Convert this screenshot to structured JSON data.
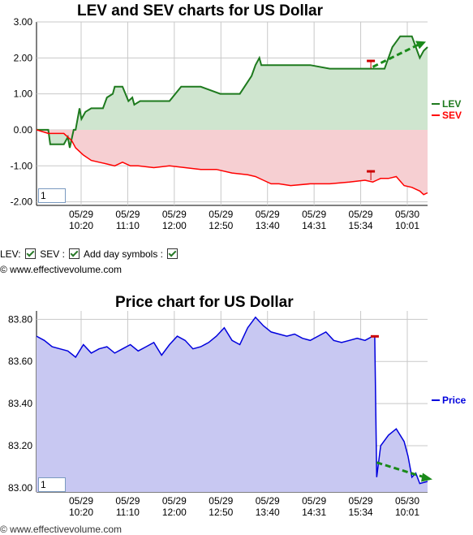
{
  "controls": {
    "lev_label": "LEV:",
    "sev_label": "SEV :",
    "day_symbols_label": "Add day symbols :"
  },
  "copyright": "© www.effectivevolume.com",
  "footer_partial": "© www.effectivevolume.com",
  "colors": {
    "lev": "#1e7a1e",
    "lev_fill": "#cfe5cf",
    "sev": "#ff0000",
    "sev_fill": "#f6cfd2",
    "price": "#0000dd",
    "price_fill": "#c8c8f2",
    "trend_arrow": "#1a8a1a"
  },
  "chart_data": [
    {
      "type": "line",
      "title": "LEV and SEV charts for US Dollar",
      "zoom_value": "1",
      "ylim": [
        -2.1,
        3.0
      ],
      "yticks": [
        "3.00",
        "2.00",
        "1.00",
        "0.00",
        "-1.00",
        "-2.00"
      ],
      "ytick_values": [
        3,
        2,
        1,
        0,
        -1,
        -2
      ],
      "xticks": [
        {
          "date": "05/29",
          "time": "10:20"
        },
        {
          "date": "05/29",
          "time": "11:10"
        },
        {
          "date": "05/29",
          "time": "12:00"
        },
        {
          "date": "05/29",
          "time": "12:50"
        },
        {
          "date": "05/29",
          "time": "13:40"
        },
        {
          "date": "05/29",
          "time": "14:31"
        },
        {
          "date": "05/29",
          "time": "15:34"
        },
        {
          "date": "05/30",
          "time": "10:01"
        }
      ],
      "grid": true,
      "legend": "right",
      "series": [
        {
          "name": "LEV",
          "x": [
            0,
            0.03,
            0.035,
            0.05,
            0.07,
            0.08,
            0.085,
            0.095,
            0.1,
            0.11,
            0.115,
            0.125,
            0.14,
            0.16,
            0.17,
            0.18,
            0.195,
            0.2,
            0.22,
            0.235,
            0.245,
            0.25,
            0.265,
            0.275,
            0.285,
            0.3,
            0.34,
            0.37,
            0.38,
            0.42,
            0.47,
            0.5,
            0.52,
            0.55,
            0.56,
            0.57,
            0.575,
            0.59,
            0.61,
            0.62,
            0.63,
            0.65,
            0.7,
            0.75,
            0.8,
            0.85,
            0.87,
            0.88,
            0.89,
            0.9,
            0.91,
            0.93,
            0.95,
            0.96,
            0.97,
            0.98,
            0.99,
            1.0
          ],
          "values": [
            0.0,
            0.0,
            -0.4,
            -0.4,
            -0.4,
            -0.2,
            -0.5,
            0.0,
            0.0,
            0.6,
            0.3,
            0.5,
            0.6,
            0.6,
            0.6,
            0.9,
            1.0,
            1.2,
            1.2,
            0.8,
            0.9,
            0.7,
            0.8,
            0.8,
            0.8,
            0.8,
            0.8,
            1.2,
            1.2,
            1.2,
            1.0,
            1.0,
            1.0,
            1.5,
            1.8,
            2.0,
            1.8,
            1.8,
            1.8,
            1.8,
            1.8,
            1.8,
            1.8,
            1.7,
            1.7,
            1.7,
            1.7,
            1.7,
            1.7,
            2.0,
            2.3,
            2.6,
            2.6,
            2.6,
            2.3,
            2.0,
            2.2,
            2.3
          ]
        },
        {
          "name": "SEV",
          "x": [
            0,
            0.03,
            0.05,
            0.07,
            0.09,
            0.1,
            0.12,
            0.14,
            0.16,
            0.18,
            0.2,
            0.22,
            0.24,
            0.26,
            0.3,
            0.34,
            0.38,
            0.42,
            0.46,
            0.5,
            0.54,
            0.56,
            0.58,
            0.6,
            0.62,
            0.65,
            0.7,
            0.75,
            0.8,
            0.84,
            0.86,
            0.87,
            0.88,
            0.9,
            0.92,
            0.94,
            0.96,
            0.97,
            0.98,
            0.99,
            1.0
          ],
          "values": [
            0.0,
            -0.1,
            -0.1,
            -0.1,
            -0.3,
            -0.5,
            -0.7,
            -0.85,
            -0.9,
            -0.95,
            -1.0,
            -0.9,
            -1.0,
            -1.0,
            -1.05,
            -1.0,
            -1.05,
            -1.1,
            -1.1,
            -1.2,
            -1.25,
            -1.3,
            -1.4,
            -1.5,
            -1.5,
            -1.55,
            -1.5,
            -1.5,
            -1.45,
            -1.4,
            -1.45,
            -1.4,
            -1.35,
            -1.35,
            -1.3,
            -1.55,
            -1.6,
            -1.65,
            -1.7,
            -1.8,
            -1.75
          ]
        }
      ]
    },
    {
      "type": "area",
      "title": "Price chart for US Dollar",
      "zoom_value": "1",
      "ylim": [
        82.98,
        83.84
      ],
      "yticks": [
        "83.80",
        "83.60",
        "83.40",
        "83.20",
        "83.00"
      ],
      "ytick_values": [
        83.8,
        83.6,
        83.4,
        83.2,
        83.0
      ],
      "xticks": [
        {
          "date": "05/29",
          "time": "10:20"
        },
        {
          "date": "05/29",
          "time": "11:10"
        },
        {
          "date": "05/29",
          "time": "12:00"
        },
        {
          "date": "05/29",
          "time": "12:50"
        },
        {
          "date": "05/29",
          "time": "13:40"
        },
        {
          "date": "05/29",
          "time": "14:31"
        },
        {
          "date": "05/29",
          "time": "15:34"
        },
        {
          "date": "05/30",
          "time": "10:01"
        }
      ],
      "grid": true,
      "legend": "right",
      "series": [
        {
          "name": "Price",
          "x": [
            0,
            0.02,
            0.04,
            0.06,
            0.08,
            0.1,
            0.12,
            0.14,
            0.16,
            0.18,
            0.2,
            0.22,
            0.24,
            0.26,
            0.28,
            0.3,
            0.32,
            0.34,
            0.36,
            0.38,
            0.4,
            0.42,
            0.44,
            0.46,
            0.48,
            0.5,
            0.52,
            0.54,
            0.56,
            0.58,
            0.6,
            0.62,
            0.64,
            0.66,
            0.68,
            0.7,
            0.72,
            0.74,
            0.76,
            0.78,
            0.8,
            0.82,
            0.84,
            0.86,
            0.865,
            0.87,
            0.88,
            0.9,
            0.92,
            0.94,
            0.95,
            0.96,
            0.97,
            0.98,
            1.0
          ],
          "values": [
            83.72,
            83.7,
            83.67,
            83.66,
            83.65,
            83.62,
            83.68,
            83.64,
            83.66,
            83.67,
            83.64,
            83.66,
            83.68,
            83.65,
            83.67,
            83.69,
            83.63,
            83.68,
            83.72,
            83.7,
            83.66,
            83.67,
            83.69,
            83.72,
            83.76,
            83.7,
            83.68,
            83.76,
            83.81,
            83.77,
            83.74,
            83.73,
            83.72,
            83.73,
            83.71,
            83.7,
            83.72,
            83.74,
            83.7,
            83.69,
            83.7,
            83.71,
            83.7,
            83.72,
            83.72,
            83.05,
            83.2,
            83.25,
            83.28,
            83.22,
            83.15,
            83.05,
            83.07,
            83.02,
            83.03
          ]
        }
      ]
    }
  ]
}
